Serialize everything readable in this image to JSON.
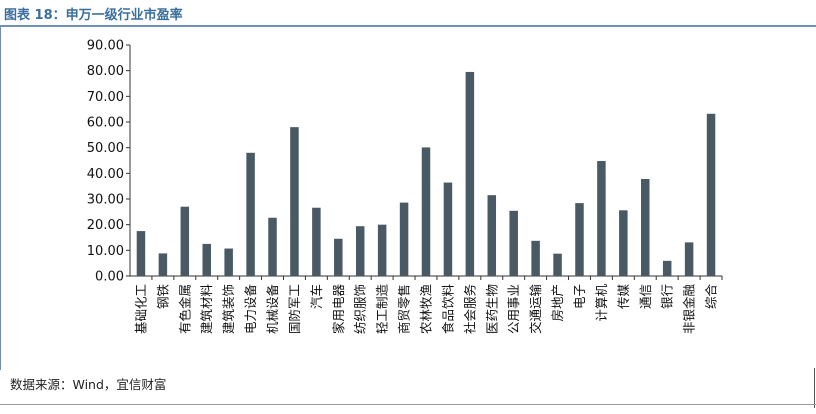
{
  "header": {
    "title": "图表 18：申万一级行业市盈率"
  },
  "footer": {
    "source": "数据来源：Wind，宜信财富"
  },
  "chart_data": {
    "type": "bar",
    "title": "",
    "xlabel": "",
    "ylabel": "",
    "ylim": [
      0,
      90
    ],
    "yticks": [
      "0.00",
      "10.00",
      "20.00",
      "30.00",
      "40.00",
      "50.00",
      "60.00",
      "70.00",
      "80.00",
      "90.00"
    ],
    "grid": false,
    "bar_color": "#4a5a64",
    "categories": [
      "基础化工",
      "钢铁",
      "有色金属",
      "建筑材料",
      "建筑装饰",
      "电力设备",
      "机械设备",
      "国防军工",
      "汽车",
      "家用电器",
      "纺织服饰",
      "轻工制造",
      "商贸零售",
      "农林牧渔",
      "食品饮料",
      "社会服务",
      "医药生物",
      "公用事业",
      "交通运输",
      "房地产",
      "电子",
      "计算机",
      "传媒",
      "通信",
      "银行",
      "非银金融",
      "综合"
    ],
    "values": [
      17.5,
      8.8,
      27.0,
      12.5,
      10.7,
      48.0,
      22.7,
      58.0,
      26.6,
      14.5,
      19.4,
      20.0,
      28.6,
      50.1,
      36.4,
      79.5,
      31.5,
      25.4,
      13.7,
      8.7,
      28.4,
      44.8,
      25.6,
      37.8,
      5.9,
      13.1,
      63.2
    ]
  }
}
